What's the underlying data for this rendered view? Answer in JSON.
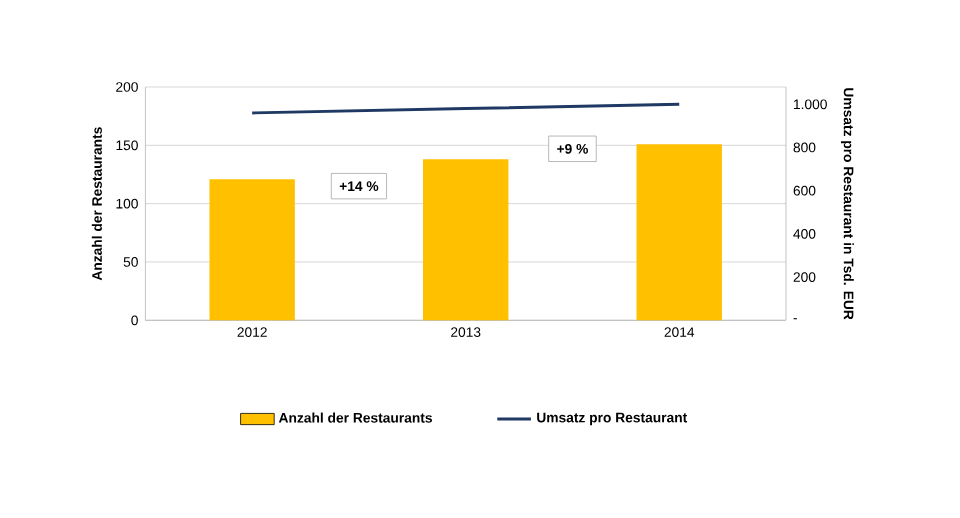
{
  "chart_data": {
    "type": "bar",
    "categories": [
      "2012",
      "2013",
      "2014"
    ],
    "series": [
      {
        "name": "Anzahl der Restaurants",
        "color": "#ffc000",
        "values": [
          121,
          138,
          151
        ]
      },
      {
        "name": "Umsatz pro Restaurant",
        "type": "line",
        "axis": "y2",
        "color": "#1f3864",
        "values": [
          960,
          980,
          1000
        ]
      }
    ],
    "ylabel": "Anzahl der Restaurants",
    "y2label": "Umsatz pro Restaurant in Tsd. EUR",
    "ylim": [
      0,
      200
    ],
    "yticks": [
      0,
      50,
      100,
      150,
      200
    ],
    "y2lim": [
      0,
      1080
    ],
    "y2ticks": [
      {
        "value": 0,
        "label": "-"
      },
      {
        "value": 200,
        "label": "200"
      },
      {
        "value": 400,
        "label": "400"
      },
      {
        "value": 600,
        "label": "600"
      },
      {
        "value": 800,
        "label": "800"
      },
      {
        "value": 1000,
        "label": "1.000"
      }
    ],
    "annotations": [
      "+14 %",
      "+9 %"
    ],
    "grid": "y",
    "legend": "bottom",
    "marker": "none",
    "line_style": "solid"
  }
}
